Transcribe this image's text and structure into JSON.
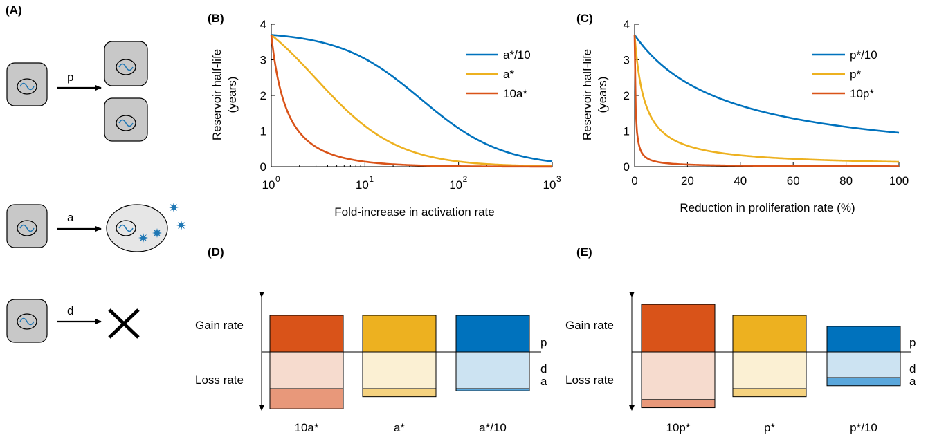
{
  "panel_labels": {
    "A": "(A)",
    "B": "(B)",
    "C": "(C)",
    "D": "(D)",
    "E": "(E)"
  },
  "schematic": {
    "proliferation_label": "p",
    "activation_label": "a",
    "death_label": "d",
    "death_symbol": "cross-icon",
    "virus_symbol": "starburst-icon",
    "colors": {
      "cell_fill": "#c8c8c8",
      "activated_cell_fill": "#e6e6e6",
      "virus": "#1f77b4",
      "genome": "#1f77b4"
    }
  },
  "chart_data": [
    {
      "id": "B",
      "type": "line",
      "xlabel": "Fold-increase in activation rate",
      "ylabel": [
        "Reservoir half-life",
        "(years)"
      ],
      "x_scale": "log",
      "xlim": [
        1,
        1000
      ],
      "ylim": [
        0,
        4
      ],
      "x_ticks": [
        {
          "value": 1,
          "base": "10",
          "exp": "0"
        },
        {
          "value": 10,
          "base": "10",
          "exp": "1"
        },
        {
          "value": 100,
          "base": "10",
          "exp": "2"
        },
        {
          "value": 1000,
          "base": "10",
          "exp": "3"
        }
      ],
      "y_ticks": [
        "0",
        "1",
        "2",
        "3",
        "4"
      ],
      "legend_position": "top-right",
      "series": [
        {
          "name": "a*/10",
          "color": "#0072bd",
          "x0": 1,
          "y0": 3.7,
          "k": 0.0246
        },
        {
          "name": "a*",
          "color": "#edb120",
          "x0": 1,
          "y0": 3.7,
          "k": 0.249
        },
        {
          "name": "10a*",
          "color": "#d95319",
          "x0": 1,
          "y0": 3.7,
          "k": 2.84
        }
      ]
    },
    {
      "id": "C",
      "type": "line",
      "xlabel": "Reduction in proliferation rate (%)",
      "ylabel": [
        "Reservoir half-life",
        "(years)"
      ],
      "xlim": [
        0,
        100
      ],
      "ylim": [
        0,
        4
      ],
      "x_ticks": [
        "0",
        "20",
        "40",
        "60",
        "80",
        "100"
      ],
      "y_ticks": [
        "0",
        "1",
        "2",
        "3",
        "4"
      ],
      "legend_position": "top-right",
      "series": [
        {
          "name": "p*/10",
          "color": "#0072bd",
          "x0": 0,
          "y0": 3.7,
          "k": 0.0289
        },
        {
          "name": "p*",
          "color": "#edb120",
          "x0": 0,
          "y0": 3.7,
          "k": 0.265
        },
        {
          "name": "10p*",
          "color": "#d95319",
          "x0": 0,
          "y0": 3.7,
          "k": 3.1
        }
      ]
    },
    {
      "id": "D",
      "type": "bar",
      "ylabel_top": "Gain rate",
      "ylabel_bottom": "Loss rate",
      "side_labels": [
        "p",
        "d",
        "a"
      ],
      "categories": [
        "10a*",
        "a*",
        "a*/10"
      ],
      "series": [
        {
          "name": "p",
          "values": [
            1.0,
            1.0,
            1.0
          ]
        },
        {
          "name": "d",
          "values": [
            1.0,
            1.0,
            1.0
          ]
        },
        {
          "name": "a",
          "values": [
            0.55,
            0.22,
            0.06
          ]
        }
      ],
      "colors": {
        "gain": [
          "#d95319",
          "#edb120",
          "#0072bd"
        ],
        "loss_d": [
          "#f6dbce",
          "#fbf0d3",
          "#cce3f2"
        ],
        "loss_a": [
          "#e8987a",
          "#f5d27f",
          "#5aa7dc"
        ]
      }
    },
    {
      "id": "E",
      "type": "bar",
      "ylabel_top": "Gain rate",
      "ylabel_bottom": "Loss rate",
      "side_labels": [
        "p",
        "d",
        "a"
      ],
      "categories": [
        "10p*",
        "p*",
        "p*/10"
      ],
      "series": [
        {
          "name": "p",
          "values": [
            1.3,
            1.0,
            0.7
          ]
        },
        {
          "name": "d",
          "values": [
            1.3,
            1.0,
            0.7
          ]
        },
        {
          "name": "a",
          "values": [
            0.22,
            0.22,
            0.22
          ]
        }
      ],
      "colors": {
        "gain": [
          "#d95319",
          "#edb120",
          "#0072bd"
        ],
        "loss_d": [
          "#f6dbce",
          "#fbf0d3",
          "#cce3f2"
        ],
        "loss_a": [
          "#e8987a",
          "#f5d27f",
          "#5aa7dc"
        ]
      }
    }
  ]
}
